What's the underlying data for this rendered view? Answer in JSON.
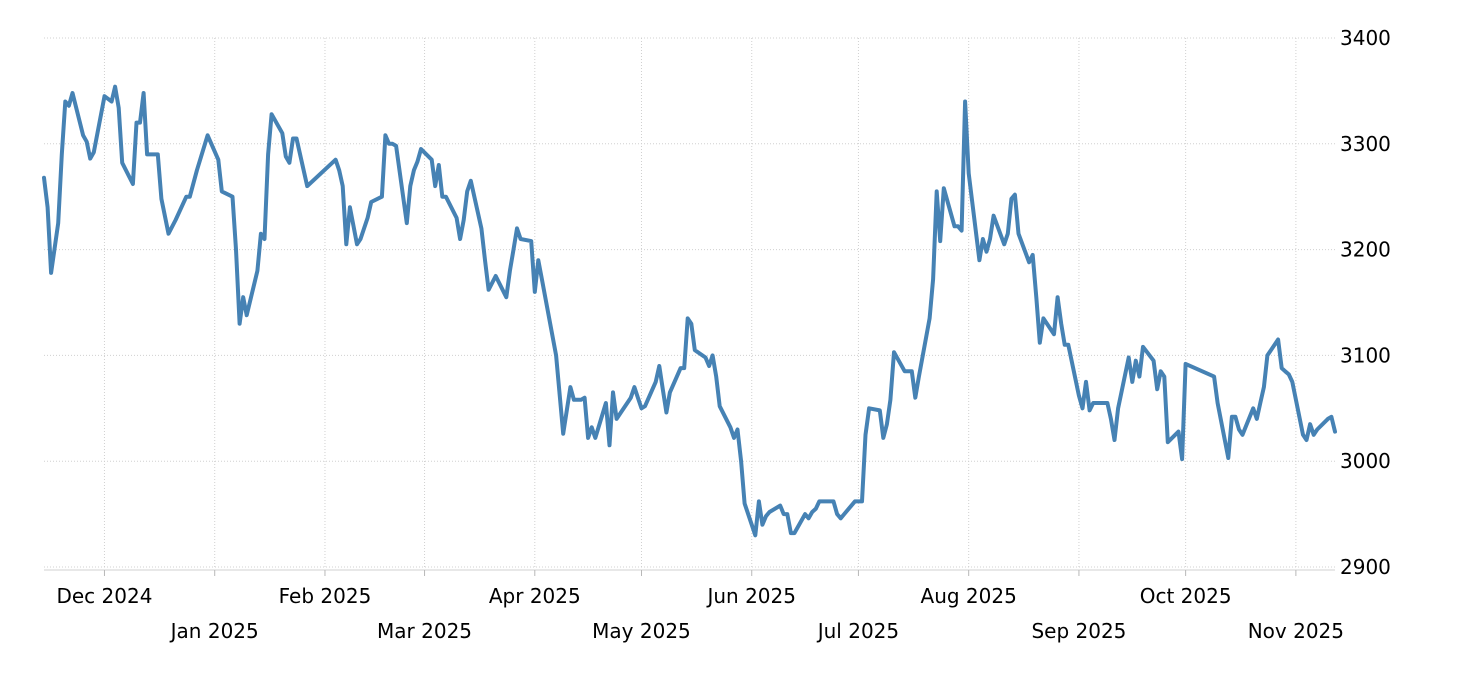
{
  "chart_data": {
    "type": "line",
    "title": "",
    "xlabel": "",
    "ylabel": "",
    "ylim": [
      2900,
      3400
    ],
    "y_ticks": [
      "3400",
      "3300",
      "3200",
      "3100",
      "3000",
      "2900"
    ],
    "y_axis_side": "right",
    "grid": true,
    "x_ticks": [
      {
        "label": "Dec 2024",
        "date": "2024-12-01",
        "row": 1
      },
      {
        "label": "Jan 2025",
        "date": "2025-01-01",
        "row": 2
      },
      {
        "label": "Feb 2025",
        "date": "2025-02-01",
        "row": 1
      },
      {
        "label": "Mar 2025",
        "date": "2025-03-01",
        "row": 2
      },
      {
        "label": "Apr 2025",
        "date": "2025-04-01",
        "row": 1
      },
      {
        "label": "May 2025",
        "date": "2025-05-01",
        "row": 2
      },
      {
        "label": "Jun 2025",
        "date": "2025-06-01",
        "row": 1
      },
      {
        "label": "Jul 2025",
        "date": "2025-07-01",
        "row": 2
      },
      {
        "label": "Aug 2025",
        "date": "2025-08-01",
        "row": 1
      },
      {
        "label": "Sep 2025",
        "date": "2025-09-01",
        "row": 2
      },
      {
        "label": "Oct 2025",
        "date": "2025-10-01",
        "row": 1
      },
      {
        "label": "Nov 2025",
        "date": "2025-11-01",
        "row": 2
      }
    ],
    "x_range": [
      "2024-11-14",
      "2025-11-12"
    ],
    "series": [
      {
        "color": "#4682b4",
        "x": [
          "2024-11-14",
          "2024-11-15",
          "2024-11-16",
          "2024-11-18",
          "2024-11-19",
          "2024-11-20",
          "2024-11-21",
          "2024-11-22",
          "2024-11-25",
          "2024-11-26",
          "2024-11-27",
          "2024-11-28",
          "2024-12-01",
          "2024-12-03",
          "2024-12-04",
          "2024-12-05",
          "2024-12-06",
          "2024-12-09",
          "2024-12-10",
          "2024-12-11",
          "2024-12-12",
          "2024-12-13",
          "2024-12-16",
          "2024-12-17",
          "2024-12-19",
          "2024-12-21",
          "2024-12-24",
          "2024-12-25",
          "2024-12-27",
          "2024-12-30",
          "2025-01-02",
          "2025-01-03",
          "2025-01-06",
          "2025-01-07",
          "2025-01-08",
          "2025-01-09",
          "2025-01-10",
          "2025-01-13",
          "2025-01-14",
          "2025-01-15",
          "2025-01-16",
          "2025-01-17",
          "2025-01-20",
          "2025-01-21",
          "2025-01-22",
          "2025-01-23",
          "2025-01-24",
          "2025-01-27",
          "2025-02-04",
          "2025-02-05",
          "2025-02-06",
          "2025-02-07",
          "2025-02-08",
          "2025-02-10",
          "2025-02-11",
          "2025-02-13",
          "2025-02-14",
          "2025-02-17",
          "2025-02-18",
          "2025-02-19",
          "2025-02-20",
          "2025-02-21",
          "2025-02-24",
          "2025-02-25",
          "2025-02-26",
          "2025-02-27",
          "2025-02-28",
          "2025-03-03",
          "2025-03-04",
          "2025-03-05",
          "2025-03-06",
          "2025-03-07",
          "2025-03-10",
          "2025-03-11",
          "2025-03-12",
          "2025-03-13",
          "2025-03-14",
          "2025-03-17",
          "2025-03-18",
          "2025-03-19",
          "2025-03-21",
          "2025-03-24",
          "2025-03-25",
          "2025-03-26",
          "2025-03-27",
          "2025-03-28",
          "2025-03-31",
          "2025-04-01",
          "2025-04-02",
          "2025-04-03",
          "2025-04-07",
          "2025-04-09",
          "2025-04-11",
          "2025-04-12",
          "2025-04-14",
          "2025-04-15",
          "2025-04-16",
          "2025-04-17",
          "2025-04-18",
          "2025-04-21",
          "2025-04-22",
          "2025-04-23",
          "2025-04-24",
          "2025-04-25",
          "2025-04-28",
          "2025-04-29",
          "2025-04-30",
          "2025-05-01",
          "2025-05-02",
          "2025-05-05",
          "2025-05-06",
          "2025-05-07",
          "2025-05-08",
          "2025-05-09",
          "2025-05-12",
          "2025-05-13",
          "2025-05-14",
          "2025-05-15",
          "2025-05-16",
          "2025-05-19",
          "2025-05-20",
          "2025-05-21",
          "2025-05-22",
          "2025-05-23",
          "2025-05-26",
          "2025-05-27",
          "2025-05-28",
          "2025-05-29",
          "2025-05-30",
          "2025-06-02",
          "2025-06-03",
          "2025-06-04",
          "2025-06-05",
          "2025-06-06",
          "2025-06-09",
          "2025-06-10",
          "2025-06-11",
          "2025-06-12",
          "2025-06-13",
          "2025-06-16",
          "2025-06-17",
          "2025-06-18",
          "2025-06-19",
          "2025-06-20",
          "2025-06-23",
          "2025-06-24",
          "2025-06-25",
          "2025-06-26",
          "2025-06-27",
          "2025-06-30",
          "2025-07-01",
          "2025-07-02",
          "2025-07-03",
          "2025-07-04",
          "2025-07-07",
          "2025-07-08",
          "2025-07-09",
          "2025-07-10",
          "2025-07-11",
          "2025-07-14",
          "2025-07-15",
          "2025-07-16",
          "2025-07-17",
          "2025-07-18",
          "2025-07-21",
          "2025-07-22",
          "2025-07-23",
          "2025-07-24",
          "2025-07-25",
          "2025-07-28",
          "2025-07-29",
          "2025-07-30",
          "2025-07-31",
          "2025-08-01",
          "2025-08-04",
          "2025-08-05",
          "2025-08-06",
          "2025-08-07",
          "2025-08-08",
          "2025-08-11",
          "2025-08-12",
          "2025-08-13",
          "2025-08-14",
          "2025-08-15",
          "2025-08-18",
          "2025-08-19",
          "2025-08-20",
          "2025-08-21",
          "2025-08-22",
          "2025-08-25",
          "2025-08-26",
          "2025-08-27",
          "2025-08-28",
          "2025-08-29",
          "2025-09-01",
          "2025-09-02",
          "2025-09-03",
          "2025-09-04",
          "2025-09-05",
          "2025-09-08",
          "2025-09-09",
          "2025-09-10",
          "2025-09-11",
          "2025-09-12",
          "2025-09-15",
          "2025-09-16",
          "2025-09-17",
          "2025-09-18",
          "2025-09-19",
          "2025-09-22",
          "2025-09-23",
          "2025-09-24",
          "2025-09-25",
          "2025-09-26",
          "2025-09-29",
          "2025-09-30",
          "2025-10-01",
          "2025-10-09",
          "2025-10-10",
          "2025-10-13",
          "2025-10-14",
          "2025-10-15",
          "2025-10-16",
          "2025-10-17",
          "2025-10-20",
          "2025-10-21",
          "2025-10-22",
          "2025-10-23",
          "2025-10-24",
          "2025-10-27",
          "2025-10-28",
          "2025-10-29",
          "2025-10-30",
          "2025-10-31",
          "2025-11-03",
          "2025-11-04",
          "2025-11-05",
          "2025-11-06",
          "2025-11-07",
          "2025-11-10",
          "2025-11-11",
          "2025-11-12"
        ],
        "values": [
          3268,
          3240,
          3178,
          3225,
          3290,
          3340,
          3336,
          3348,
          3308,
          3302,
          3286,
          3292,
          3345,
          3340,
          3354,
          3334,
          3282,
          3262,
          3320,
          3320,
          3348,
          3290,
          3290,
          3248,
          3215,
          3228,
          3250,
          3250,
          3275,
          3308,
          3285,
          3255,
          3250,
          3200,
          3130,
          3155,
          3138,
          3180,
          3215,
          3210,
          3290,
          3328,
          3310,
          3288,
          3282,
          3305,
          3305,
          3260,
          3285,
          3275,
          3260,
          3205,
          3240,
          3205,
          3210,
          3230,
          3245,
          3250,
          3308,
          3300,
          3300,
          3298,
          3225,
          3260,
          3275,
          3283,
          3295,
          3285,
          3260,
          3280,
          3250,
          3250,
          3230,
          3210,
          3228,
          3255,
          3265,
          3220,
          3190,
          3162,
          3175,
          3155,
          3180,
          3200,
          3220,
          3210,
          3208,
          3160,
          3190,
          3172,
          3100,
          3026,
          3070,
          3058,
          3058,
          3060,
          3022,
          3032,
          3022,
          3055,
          3015,
          3065,
          3040,
          3045,
          3060,
          3070,
          3060,
          3050,
          3052,
          3075,
          3090,
          3068,
          3046,
          3065,
          3088,
          3088,
          3135,
          3130,
          3105,
          3098,
          3090,
          3100,
          3080,
          3052,
          3032,
          3022,
          3030,
          3000,
          2960,
          2930,
          2962,
          2940,
          2948,
          2952,
          2958,
          2950,
          2950,
          2932,
          2932,
          2950,
          2946,
          2952,
          2955,
          2962,
          2962,
          2962,
          2950,
          2946,
          2950,
          2962,
          2962,
          2962,
          3025,
          3050,
          3048,
          3022,
          3035,
          3058,
          3103,
          3085,
          3085,
          3085,
          3060,
          3080,
          3135,
          3172,
          3255,
          3208,
          3258,
          3222,
          3222,
          3218,
          3340,
          3272,
          3190,
          3210,
          3198,
          3210,
          3232,
          3205,
          3215,
          3248,
          3252,
          3215,
          3188,
          3195,
          3155,
          3112,
          3135,
          3120,
          3155,
          3130,
          3110,
          3110,
          3062,
          3050,
          3075,
          3048,
          3055,
          3055,
          3055,
          3040,
          3020,
          3050,
          3098,
          3075,
          3095,
          3080,
          3108,
          3095,
          3068,
          3085,
          3080,
          3018,
          3028,
          3002,
          3092,
          3080,
          3055,
          3003,
          3042,
          3042,
          3030,
          3025,
          3050,
          3040,
          3055,
          3070,
          3100,
          3115,
          3088,
          3085,
          3082,
          3075,
          3025,
          3020,
          3035,
          3025,
          3030,
          3040,
          3042,
          3028
        ]
      }
    ]
  }
}
